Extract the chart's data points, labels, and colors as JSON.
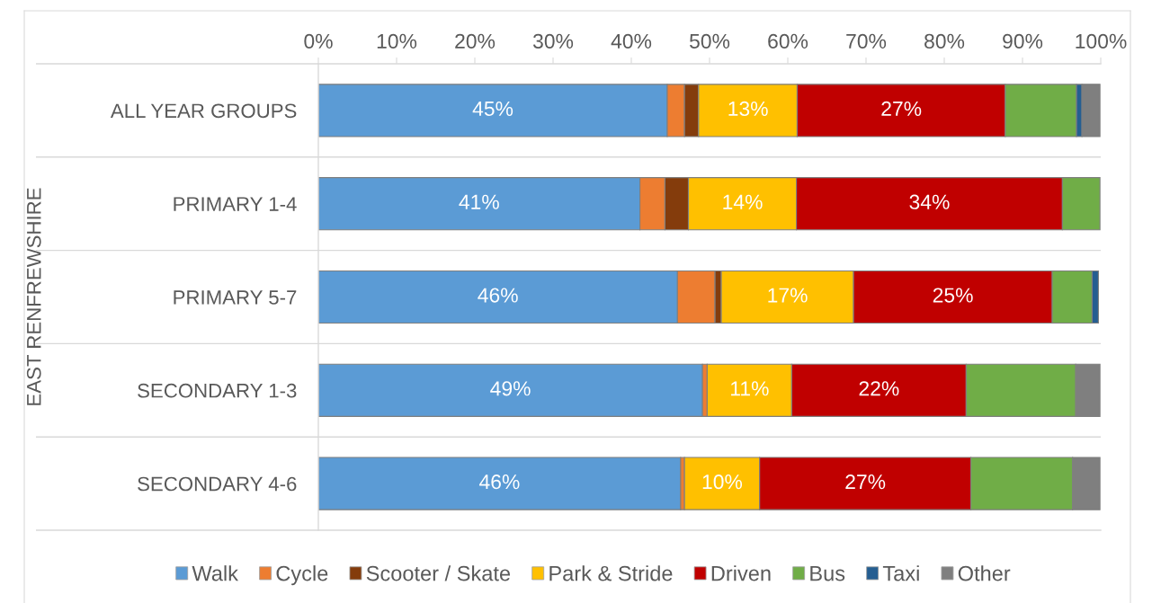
{
  "chart_data": {
    "type": "bar",
    "orientation": "horizontal",
    "stacked": true,
    "ylabel": "EAST RENFREWSHIRE",
    "categories": [
      "ALL YEAR GROUPS",
      "PRIMARY 1-4",
      "PRIMARY 5-7",
      "SECONDARY 1-3",
      "SECONDARY 4-6"
    ],
    "xlim": [
      0,
      100
    ],
    "xticks": [
      {
        "value": 0,
        "label": "0%"
      },
      {
        "value": 10,
        "label": "10%"
      },
      {
        "value": 20,
        "label": "20%"
      },
      {
        "value": 30,
        "label": "30%"
      },
      {
        "value": 40,
        "label": "40%"
      },
      {
        "value": 50,
        "label": "50%"
      },
      {
        "value": 60,
        "label": "60%"
      },
      {
        "value": 70,
        "label": "70%"
      },
      {
        "value": 80,
        "label": "80%"
      },
      {
        "value": 90,
        "label": "90%"
      },
      {
        "value": 100,
        "label": "100%"
      }
    ],
    "grid": false,
    "legend": "bottom",
    "series": [
      {
        "name": "Walk",
        "color": "#5b9bd5",
        "values": [
          44.6,
          41.1,
          45.9,
          49.1,
          46.3
        ],
        "value_labels": [
          "45%",
          "41%",
          "46%",
          "49%",
          "46%"
        ]
      },
      {
        "name": "Cycle",
        "color": "#ed7d31",
        "values": [
          2.2,
          3.2,
          4.8,
          0.6,
          0.5
        ]
      },
      {
        "name": "Scooter / Skate",
        "color": "#843c0c",
        "values": [
          1.8,
          3.0,
          0.8,
          null,
          null
        ]
      },
      {
        "name": "Park & Stride",
        "color": "#ffc000",
        "values": [
          12.6,
          13.8,
          16.9,
          10.8,
          9.6
        ],
        "value_labels": [
          "13%",
          "14%",
          "17%",
          "11%",
          "10%"
        ]
      },
      {
        "name": "Driven",
        "color": "#c00000",
        "values": [
          26.6,
          34.0,
          25.4,
          22.3,
          27.0
        ],
        "value_labels": [
          "27%",
          "34%",
          "25%",
          "22%",
          "27%"
        ]
      },
      {
        "name": "Bus",
        "color": "#70ad47",
        "values": [
          9.1,
          4.8,
          5.1,
          14.0,
          13.0
        ]
      },
      {
        "name": "Taxi",
        "color": "#255e91",
        "values": [
          0.7,
          null,
          0.8,
          null,
          null
        ]
      },
      {
        "name": "Other",
        "color": "#7f7f7f",
        "values": [
          2.3,
          null,
          null,
          3.1,
          3.5
        ]
      }
    ]
  }
}
